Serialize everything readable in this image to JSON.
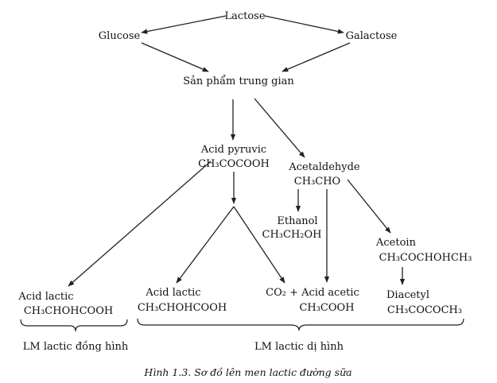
{
  "nodes": {
    "lactose": "Lactose",
    "glucose": "Glucose",
    "galactose": "Galactose",
    "intermediate": "Sản phẩm trung gian",
    "pyruvic_name": "Acid pyruvic",
    "pyruvic_formula": "CH₃COCOOH",
    "acetaldehyde_name": "Acetaldehyde",
    "acetaldehyde_formula": "CH₃CHO",
    "ethanol_name": "Ethanol",
    "ethanol_formula": "CH₃CH₂OH",
    "acetoin_name": "Acetoin",
    "acetoin_formula": "CH₃COCHOHCH₃",
    "lactic_homo_name": "Acid lactic",
    "lactic_homo_formula": "CH₃CHOHCOOH",
    "lactic_hetero_name": "Acid lactic",
    "lactic_hetero_formula": "CH₃CHOHCOOH",
    "co2_acetic_name": "CO₂ + Acid acetic",
    "acetic_formula": "CH₃COOH",
    "diacetyl_name": "Diacetyl",
    "diacetyl_formula": "CH₃COCOCH₃"
  },
  "groups": {
    "homofermentative": "LM lactic đồng hình",
    "heterofermentative": "LM lactic dị hình"
  },
  "caption": "Hình 1.3. Sơ đồ lên men lactic đường sữa"
}
